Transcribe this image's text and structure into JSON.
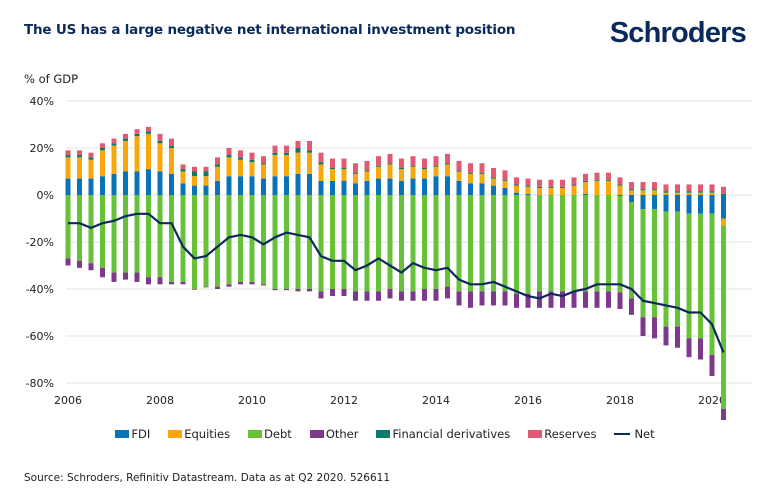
{
  "header": {
    "title": "The US has a large negative net international investment position",
    "logo": "Schroders"
  },
  "footer": {
    "source": "Source: Schroders, Refinitiv Datastream. Data as at Q2 2020. 526611"
  },
  "colors": {
    "FDI": "#0a72b8",
    "Equities": "#f8a80d",
    "Debt": "#67c23a",
    "Other": "#7d3a8c",
    "Financial derivatives": "#0d7a6c",
    "Reserves": "#e15a72",
    "Net": "#0b2a5b",
    "grid": "#e3e3e3"
  },
  "chart_data": {
    "type": "bar",
    "stacked": true,
    "title": "The US has a large negative net international investment position",
    "ylabel": "% of GDP",
    "xlabel": "",
    "ylim": [
      -80,
      40
    ],
    "yticks": [
      40,
      20,
      0,
      -20,
      -40,
      -60,
      -80
    ],
    "ytick_labels": [
      "40%",
      "20%",
      "0%",
      "-20%",
      "-40%",
      "-60%",
      "-80%"
    ],
    "xtick_labels": [
      "2006",
      "2008",
      "2010",
      "2012",
      "2014",
      "2016",
      "2018",
      "2020"
    ],
    "x_start": "2006 Q1",
    "x_end": "2020 Q2",
    "frequency": "quarterly",
    "grid": true,
    "legend_position": "bottom",
    "legend": [
      "FDI",
      "Equities",
      "Debt",
      "Other",
      "Financial derivatives",
      "Reserves",
      "Net"
    ],
    "series": [
      {
        "name": "FDI",
        "type": "bar",
        "values": [
          7,
          7,
          7,
          8,
          9,
          10,
          10,
          11,
          10,
          9,
          5,
          4,
          4,
          6,
          8,
          8,
          8,
          7,
          8,
          8,
          9,
          9,
          6,
          6,
          6,
          5,
          6,
          7,
          7,
          6,
          7,
          7,
          8,
          8,
          6,
          5,
          5,
          4,
          3,
          1,
          0.5,
          0,
          0,
          0,
          0,
          0.5,
          0,
          0,
          -0.5,
          -3,
          -6,
          -6,
          -7,
          -7,
          -8,
          -8,
          -8,
          -10
        ]
      },
      {
        "name": "Equities",
        "type": "bar",
        "values": [
          9,
          9,
          8,
          11,
          12,
          13,
          15,
          15,
          12,
          11,
          5,
          4,
          4,
          6,
          8,
          7,
          6,
          6,
          9,
          9,
          9,
          9,
          7,
          5,
          5,
          4,
          4,
          5,
          6,
          5,
          5,
          4,
          4,
          5,
          4,
          4,
          4,
          3,
          3,
          3,
          3,
          3,
          3,
          3,
          4,
          5,
          6,
          6,
          4,
          2,
          2,
          2,
          1,
          1,
          1,
          1,
          1,
          -3
        ]
      },
      {
        "name": "Debt",
        "type": "bar",
        "values": [
          -27,
          -28,
          -29,
          -31,
          -33,
          -33,
          -33,
          -35,
          -35,
          -37,
          -37,
          -40,
          -39,
          -39,
          -38,
          -37,
          -37,
          -38,
          -40,
          -40,
          -40,
          -40,
          -41,
          -40,
          -40,
          -41,
          -41,
          -41,
          -40,
          -41,
          -41,
          -40,
          -40,
          -39,
          -41,
          -41,
          -41,
          -41,
          -41,
          -42,
          -42,
          -41,
          -41,
          -41,
          -41,
          -41,
          -41,
          -41,
          -41,
          -41,
          -46,
          -46,
          -49,
          -49,
          -53,
          -53,
          -60,
          -78
        ]
      },
      {
        "name": "Other",
        "type": "bar",
        "values": [
          -3,
          -3,
          -3,
          -4,
          -4,
          -3,
          -4,
          -3,
          -3,
          -1,
          -1,
          -0.3,
          -0.3,
          -1,
          -1,
          -1,
          -1,
          -0.5,
          -0.5,
          -0.5,
          -1,
          -1,
          -3,
          -3,
          -3,
          -4,
          -4,
          -4,
          -4,
          -4,
          -4,
          -5,
          -5,
          -5,
          -6,
          -7,
          -6,
          -6,
          -6,
          -6,
          -6,
          -7,
          -7,
          -7,
          -7,
          -7,
          -7,
          -7,
          -7,
          -7,
          -8,
          -9,
          -8,
          -9,
          -8,
          -9,
          -9,
          -9
        ]
      },
      {
        "name": "Financial derivatives",
        "type": "bar",
        "values": [
          1,
          1,
          1,
          1,
          1,
          1,
          1,
          1,
          1,
          1,
          1,
          2,
          2,
          1,
          1,
          1,
          1,
          0.5,
          1,
          1,
          2,
          1,
          1,
          0.5,
          0.5,
          0.5,
          0.5,
          0.5,
          0.5,
          0.5,
          0.5,
          0.5,
          0.5,
          0.5,
          0.5,
          0.5,
          0.5,
          0.5,
          0.5,
          0.5,
          0.5,
          0.5,
          0.5,
          0.5,
          0.5,
          0.5,
          0.5,
          0.5,
          0.5,
          0.5,
          0.5,
          0.5,
          0.5,
          0.5,
          0.5,
          0.5,
          0.5,
          0.5
        ]
      },
      {
        "name": "Reserves",
        "type": "bar",
        "values": [
          2,
          2,
          2,
          2,
          2,
          2,
          2,
          2,
          3,
          3,
          2,
          2,
          2,
          3,
          3,
          3,
          3,
          3,
          3,
          3,
          3,
          4,
          4,
          4,
          4,
          4,
          4,
          4,
          4,
          4,
          4,
          4,
          4,
          4,
          4,
          4,
          4,
          4,
          4,
          3,
          3,
          3,
          3,
          3,
          3,
          3,
          3,
          3,
          3,
          3,
          3,
          3,
          3,
          3,
          3,
          3,
          3,
          3
        ]
      },
      {
        "name": "Net",
        "type": "line",
        "values": [
          -12,
          -12,
          -14,
          -12,
          -11,
          -9,
          -8,
          -8,
          -12,
          -12,
          -22,
          -27,
          -26,
          -22,
          -18,
          -17,
          -18,
          -21,
          -18,
          -16,
          -17,
          -18,
          -26,
          -28,
          -28,
          -32,
          -30,
          -27,
          -30,
          -33,
          -29,
          -31,
          -32,
          -31,
          -36,
          -38,
          -38,
          -37,
          -39,
          -41,
          -43,
          -44,
          -42,
          -43,
          -41,
          -40,
          -38,
          -38,
          -38,
          -40,
          -45,
          -46,
          -47,
          -48,
          -50,
          -50,
          -55,
          -67
        ]
      }
    ]
  }
}
